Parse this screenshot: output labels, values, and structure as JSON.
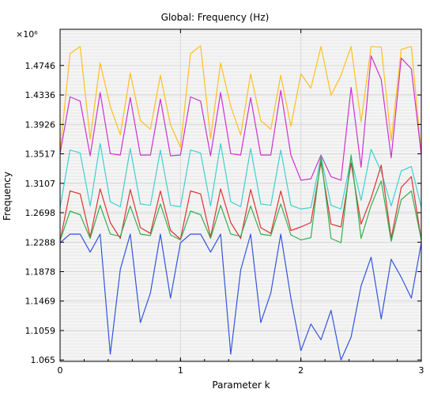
{
  "chart_data": {
    "type": "line",
    "title": "Global: Frequency (Hz)",
    "xlabel": "Parameter k",
    "ylabel": "Frequency",
    "y_multiplier": "×10⁶",
    "xlim": [
      0,
      3.0
    ],
    "ylim": [
      1.063,
      1.525
    ],
    "x_ticks": [
      0,
      1,
      2,
      3
    ],
    "x_tick_labels": [
      "0",
      "1",
      "2",
      "3"
    ],
    "y_ticks": [
      1.065,
      1.1059,
      1.1469,
      1.1878,
      1.2288,
      1.2698,
      1.3107,
      1.3517,
      1.3926,
      1.4336,
      1.4746
    ],
    "y_tick_labels": [
      "1.065",
      "1.1059",
      "1.1469",
      "1.1878",
      "1.2288",
      "1.2698",
      "1.3107",
      "1.3517",
      "1.3926",
      "1.4336",
      "1.4746"
    ],
    "grid": true,
    "legend": "none",
    "x": [
      0,
      0.083,
      0.167,
      0.25,
      0.333,
      0.417,
      0.5,
      0.583,
      0.667,
      0.75,
      0.833,
      0.917,
      1.0,
      1.083,
      1.167,
      1.25,
      1.333,
      1.417,
      1.5,
      1.583,
      1.667,
      1.75,
      1.833,
      1.917,
      2.0,
      2.083,
      2.167,
      2.25,
      2.333,
      2.417,
      2.5,
      2.583,
      2.667,
      2.75,
      2.833,
      2.917,
      3.0
    ],
    "series": [
      {
        "color": "#ffbf1f",
        "values": [
          1.355,
          1.491,
          1.501,
          1.372,
          1.478,
          1.418,
          1.378,
          1.464,
          1.398,
          1.386,
          1.461,
          1.392,
          1.361,
          1.491,
          1.502,
          1.373,
          1.478,
          1.418,
          1.378,
          1.463,
          1.398,
          1.386,
          1.461,
          1.39,
          1.463,
          1.443,
          1.501,
          1.433,
          1.461,
          1.501,
          1.396,
          1.501,
          1.5,
          1.37,
          1.497,
          1.501,
          1.352
        ]
      },
      {
        "color": "#cc33cc",
        "values": [
          1.352,
          1.431,
          1.425,
          1.349,
          1.437,
          1.352,
          1.35,
          1.43,
          1.35,
          1.35,
          1.428,
          1.349,
          1.35,
          1.431,
          1.425,
          1.349,
          1.437,
          1.352,
          1.35,
          1.43,
          1.35,
          1.35,
          1.44,
          1.35,
          1.315,
          1.317,
          1.35,
          1.32,
          1.315,
          1.444,
          1.333,
          1.488,
          1.455,
          1.346,
          1.485,
          1.47,
          1.35
        ]
      },
      {
        "color": "#40d0d0",
        "values": [
          1.277,
          1.357,
          1.353,
          1.279,
          1.366,
          1.285,
          1.278,
          1.359,
          1.282,
          1.28,
          1.357,
          1.28,
          1.278,
          1.357,
          1.353,
          1.279,
          1.366,
          1.285,
          1.278,
          1.359,
          1.282,
          1.28,
          1.357,
          1.28,
          1.275,
          1.277,
          1.348,
          1.28,
          1.275,
          1.346,
          1.287,
          1.358,
          1.327,
          1.279,
          1.328,
          1.334,
          1.277
        ]
      },
      {
        "color": "#dd3333",
        "values": [
          1.23,
          1.3,
          1.296,
          1.236,
          1.303,
          1.256,
          1.234,
          1.302,
          1.249,
          1.241,
          1.3,
          1.245,
          1.233,
          1.3,
          1.296,
          1.236,
          1.303,
          1.256,
          1.234,
          1.302,
          1.249,
          1.241,
          1.3,
          1.245,
          1.25,
          1.256,
          1.34,
          1.254,
          1.25,
          1.339,
          1.254,
          1.29,
          1.336,
          1.234,
          1.305,
          1.32,
          1.232
        ]
      },
      {
        "color": "#33b04d",
        "values": [
          1.231,
          1.272,
          1.267,
          1.234,
          1.28,
          1.24,
          1.237,
          1.279,
          1.24,
          1.238,
          1.282,
          1.239,
          1.232,
          1.272,
          1.267,
          1.234,
          1.28,
          1.24,
          1.237,
          1.279,
          1.24,
          1.238,
          1.282,
          1.239,
          1.232,
          1.235,
          1.347,
          1.234,
          1.228,
          1.35,
          1.234,
          1.28,
          1.314,
          1.23,
          1.288,
          1.3,
          1.232
        ]
      },
      {
        "color": "#3355dd",
        "values": [
          1.228,
          1.24,
          1.24,
          1.215,
          1.24,
          1.073,
          1.191,
          1.24,
          1.117,
          1.158,
          1.24,
          1.151,
          1.228,
          1.24,
          1.24,
          1.215,
          1.24,
          1.073,
          1.19,
          1.24,
          1.117,
          1.158,
          1.24,
          1.151,
          1.078,
          1.115,
          1.093,
          1.134,
          1.065,
          1.097,
          1.168,
          1.208,
          1.122,
          1.205,
          1.18,
          1.151,
          1.228
        ]
      }
    ]
  }
}
